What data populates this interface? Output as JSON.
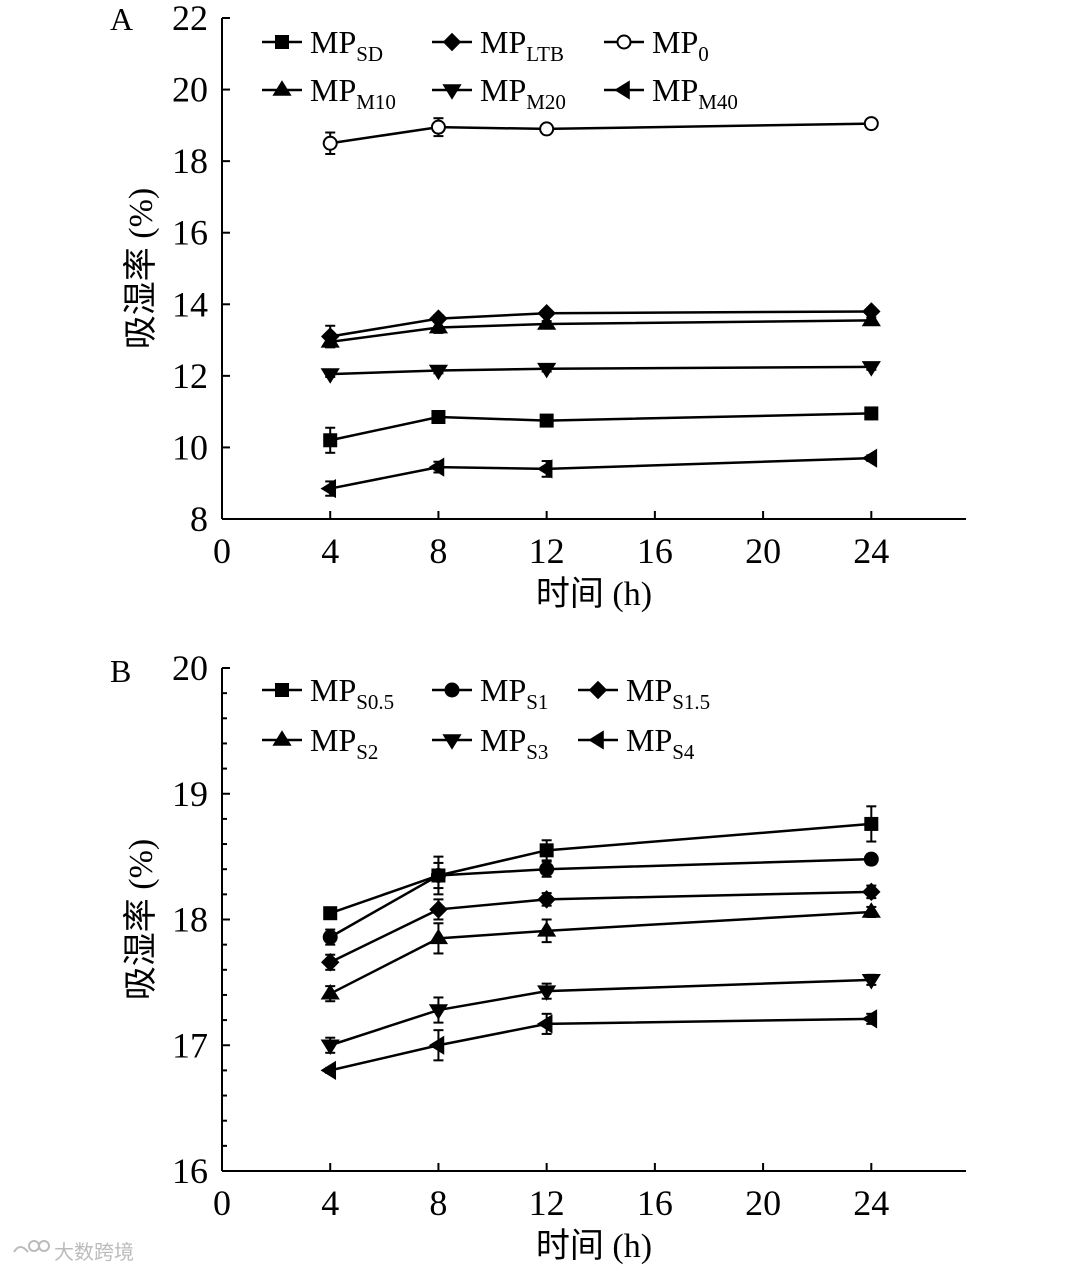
{
  "chart_data": [
    {
      "type": "line",
      "panel_label": "A",
      "xlabel": "时间 (h)",
      "ylabel": "吸湿率 (%)",
      "xlim": [
        0,
        27.5
      ],
      "ylim": [
        8,
        22
      ],
      "xticks": [
        0,
        4,
        8,
        12,
        16,
        20,
        24
      ],
      "yticks": [
        8,
        10,
        12,
        14,
        16,
        18,
        20,
        22
      ],
      "legend_position": "top",
      "series": [
        {
          "name": "MP",
          "sub": "SD",
          "marker": "square",
          "x": [
            4,
            8,
            12,
            24
          ],
          "values": [
            10.2,
            10.85,
            10.75,
            10.95
          ],
          "errors": [
            0.35,
            0.1,
            0.1,
            0.08
          ]
        },
        {
          "name": "MP",
          "sub": "LTB",
          "marker": "diamond",
          "x": [
            4,
            8,
            12,
            24
          ],
          "values": [
            13.1,
            13.6,
            13.75,
            13.8
          ],
          "errors": [
            0.3,
            0.1,
            0.08,
            0.08
          ]
        },
        {
          "name": "MP",
          "sub": "0",
          "marker": "circle-open",
          "x": [
            4,
            8,
            12,
            24
          ],
          "values": [
            18.5,
            18.95,
            18.9,
            19.05
          ],
          "errors": [
            0.3,
            0.25,
            0.1,
            0.12
          ]
        },
        {
          "name": "MP",
          "sub": "M10",
          "marker": "triangle-up",
          "x": [
            4,
            8,
            12,
            24
          ],
          "values": [
            12.95,
            13.35,
            13.45,
            13.55
          ],
          "errors": [
            0.15,
            0.15,
            0.08,
            0.08
          ]
        },
        {
          "name": "MP",
          "sub": "M20",
          "marker": "triangle-down",
          "x": [
            4,
            8,
            12,
            24
          ],
          "values": [
            12.05,
            12.15,
            12.2,
            12.25
          ],
          "errors": [
            0.08,
            0.08,
            0.08,
            0.08
          ]
        },
        {
          "name": "MP",
          "sub": "M40",
          "marker": "triangle-left",
          "x": [
            4,
            8,
            12,
            24
          ],
          "values": [
            8.85,
            9.45,
            9.4,
            9.7
          ],
          "errors": [
            0.2,
            0.15,
            0.22,
            0.08
          ]
        }
      ]
    },
    {
      "type": "line",
      "panel_label": "B",
      "xlabel": "时间 (h)",
      "ylabel": "吸湿率 (%)",
      "xlim": [
        0,
        27.5
      ],
      "ylim": [
        16,
        20
      ],
      "xticks": [
        0,
        4,
        8,
        12,
        16,
        20,
        24
      ],
      "yticks": [
        16,
        17,
        18,
        19,
        20
      ],
      "minor_yticks": [
        16.2,
        16.4,
        16.6,
        16.8,
        17.2,
        17.4,
        17.6,
        17.8,
        18.2,
        18.4,
        18.6,
        18.8,
        19.2,
        19.4,
        19.6,
        19.8
      ],
      "legend_position": "top",
      "series": [
        {
          "name": "MP",
          "sub": "S0.5",
          "marker": "square",
          "x": [
            4,
            8,
            12,
            24
          ],
          "values": [
            18.05,
            18.35,
            18.55,
            18.76
          ],
          "errors": [
            0.03,
            0.15,
            0.08,
            0.14
          ]
        },
        {
          "name": "MP",
          "sub": "S1",
          "marker": "circle",
          "x": [
            4,
            8,
            12,
            24
          ],
          "values": [
            17.86,
            18.35,
            18.4,
            18.48
          ],
          "errors": [
            0.06,
            0.1,
            0.06,
            0.04
          ]
        },
        {
          "name": "MP",
          "sub": "S1.5",
          "marker": "diamond",
          "x": [
            4,
            8,
            12,
            24
          ],
          "values": [
            17.66,
            18.08,
            18.16,
            18.22
          ],
          "errors": [
            0.06,
            0.08,
            0.05,
            0.05
          ]
        },
        {
          "name": "MP",
          "sub": "S2",
          "marker": "triangle-up",
          "x": [
            4,
            8,
            12,
            24
          ],
          "values": [
            17.41,
            17.85,
            17.91,
            18.06
          ],
          "errors": [
            0.06,
            0.12,
            0.09,
            0.04
          ]
        },
        {
          "name": "MP",
          "sub": "S3",
          "marker": "triangle-down",
          "x": [
            4,
            8,
            12,
            24
          ],
          "values": [
            17.0,
            17.28,
            17.43,
            17.52
          ],
          "errors": [
            0.06,
            0.1,
            0.06,
            0.04
          ]
        },
        {
          "name": "MP",
          "sub": "S4",
          "marker": "triangle-left",
          "x": [
            4,
            8,
            12,
            24
          ],
          "values": [
            16.8,
            17.0,
            17.17,
            17.21
          ],
          "errors": [
            0.02,
            0.12,
            0.08,
            0.04
          ]
        }
      ]
    }
  ],
  "watermark": {
    "text": "大数跨境"
  }
}
